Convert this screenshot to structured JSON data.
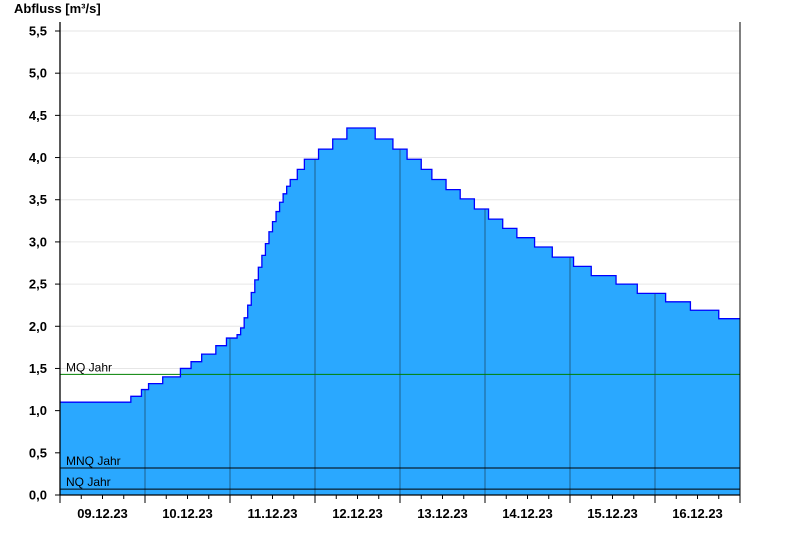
{
  "chart_data": {
    "type": "area",
    "ylabel": "Abfluss [m³/s]",
    "ylim": [
      0,
      5.5
    ],
    "xlim": [
      "09.12.23 00:00",
      "17.12.23 00:00"
    ],
    "yticks": [
      "0,0",
      "0,5",
      "1,0",
      "1,5",
      "2,0",
      "2,5",
      "3,0",
      "3,5",
      "4,0",
      "4,5",
      "5,0",
      "5,5"
    ],
    "ytick_values": [
      0,
      0.5,
      1,
      1.5,
      2,
      2.5,
      3,
      3.5,
      4,
      4.5,
      5,
      5.5
    ],
    "xticks": [
      "09.12.23",
      "10.12.23",
      "11.12.23",
      "12.12.23",
      "13.12.23",
      "14.12.23",
      "15.12.23",
      "16.12.23"
    ],
    "grid": true,
    "step": true,
    "colors": {
      "fill": "#2aa8ff",
      "outline": "#0000ff",
      "grid": "#e6e6e6",
      "day_line": "#1d5f8c",
      "mq": "#008000",
      "mnq": "#000000",
      "nq": "#000000"
    },
    "reference_lines": [
      {
        "label": "MQ Jahr",
        "value": 1.43,
        "color": "#008000"
      },
      {
        "label": "MNQ Jahr",
        "value": 0.32,
        "color": "#000000"
      },
      {
        "label": "NQ Jahr",
        "value": 0.07,
        "color": "#000000"
      }
    ],
    "series": [
      {
        "points": [
          [
            "09.12.23 00:00",
            1.1
          ],
          [
            "09.12.23 20:00",
            1.17
          ],
          [
            "09.12.23 23:00",
            1.25
          ],
          [
            "10.12.23 01:00",
            1.32
          ],
          [
            "10.12.23 05:00",
            1.4
          ],
          [
            "10.12.23 10:00",
            1.5
          ],
          [
            "10.12.23 13:00",
            1.58
          ],
          [
            "10.12.23 16:00",
            1.67
          ],
          [
            "10.12.23 20:00",
            1.77
          ],
          [
            "10.12.23 23:00",
            1.86
          ],
          [
            "11.12.23 02:00",
            1.9
          ],
          [
            "11.12.23 03:00",
            1.98
          ],
          [
            "11.12.23 04:00",
            2.1
          ],
          [
            "11.12.23 05:00",
            2.25
          ],
          [
            "11.12.23 06:00",
            2.4
          ],
          [
            "11.12.23 07:00",
            2.55
          ],
          [
            "11.12.23 08:00",
            2.7
          ],
          [
            "11.12.23 09:00",
            2.84
          ],
          [
            "11.12.23 10:00",
            2.98
          ],
          [
            "11.12.23 11:00",
            3.12
          ],
          [
            "11.12.23 12:00",
            3.24
          ],
          [
            "11.12.23 13:00",
            3.36
          ],
          [
            "11.12.23 14:00",
            3.47
          ],
          [
            "11.12.23 15:00",
            3.57
          ],
          [
            "11.12.23 16:00",
            3.66
          ],
          [
            "11.12.23 17:00",
            3.74
          ],
          [
            "11.12.23 19:00",
            3.86
          ],
          [
            "11.12.23 21:00",
            3.98
          ],
          [
            "12.12.23 01:00",
            4.1
          ],
          [
            "12.12.23 05:00",
            4.22
          ],
          [
            "12.12.23 09:00",
            4.35
          ],
          [
            "12.12.23 17:00",
            4.22
          ],
          [
            "12.12.23 22:00",
            4.1
          ],
          [
            "13.12.23 02:00",
            3.98
          ],
          [
            "13.12.23 06:00",
            3.86
          ],
          [
            "13.12.23 09:00",
            3.74
          ],
          [
            "13.12.23 13:00",
            3.62
          ],
          [
            "13.12.23 17:00",
            3.51
          ],
          [
            "13.12.23 21:00",
            3.39
          ],
          [
            "14.12.23 01:00",
            3.27
          ],
          [
            "14.12.23 05:00",
            3.16
          ],
          [
            "14.12.23 09:00",
            3.05
          ],
          [
            "14.12.23 14:00",
            2.94
          ],
          [
            "14.12.23 19:00",
            2.82
          ],
          [
            "15.12.23 01:00",
            2.71
          ],
          [
            "15.12.23 06:00",
            2.6
          ],
          [
            "15.12.23 13:00",
            2.5
          ],
          [
            "15.12.23 19:00",
            2.39
          ],
          [
            "16.12.23 03:00",
            2.29
          ],
          [
            "16.12.23 10:00",
            2.19
          ],
          [
            "16.12.23 18:00",
            2.09
          ],
          [
            "17.12.23 00:00",
            2.09
          ]
        ]
      }
    ]
  }
}
